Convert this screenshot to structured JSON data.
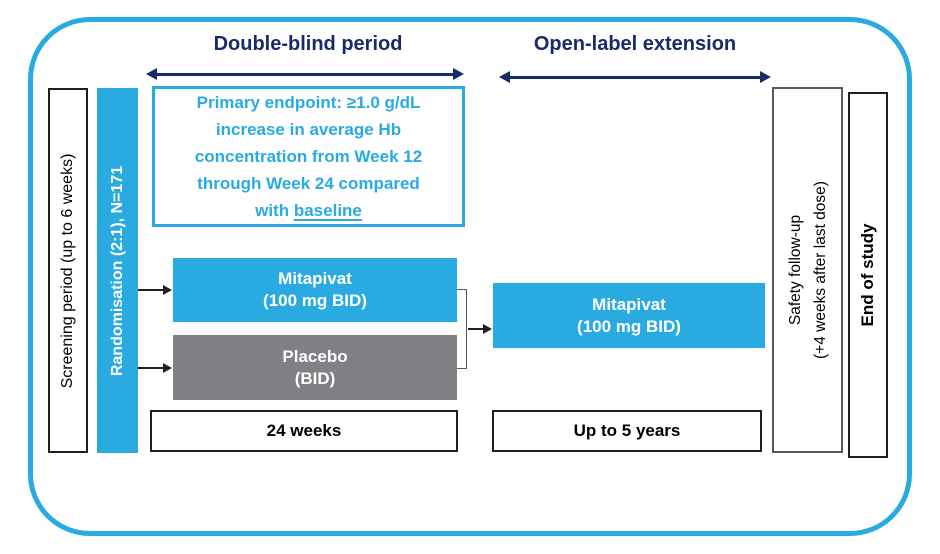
{
  "colors": {
    "cyan": "#29ABE2",
    "navy": "#172B68",
    "gray": "#808184",
    "ink": "#231F20",
    "bracket": "#58595B"
  },
  "headers": {
    "double_blind": "Double-blind period",
    "open_label": "Open-label extension"
  },
  "left_rail": {
    "screening": "Screening period (up to 6 weeks)",
    "randomisation": "Randomisation (2:1), N=171"
  },
  "endpoint": {
    "lines": [
      "Primary endpoint: ≥1.0 g/dL",
      "increase in average Hb",
      "concentration from Week 12",
      "through Week 24 compared"
    ],
    "last_line_prefix": "with",
    "last_line_underlined": "baseline"
  },
  "arms": {
    "mitapivat_db": {
      "name": "Mitapivat",
      "dose": "(100 mg BID)"
    },
    "placebo": {
      "name": "Placebo",
      "dose": "(BID)"
    },
    "mitapivat_ole": {
      "name": "Mitapivat",
      "dose": "(100 mg BID)"
    }
  },
  "durations": {
    "double_blind": "24 weeks",
    "open_label": "Up to 5 years"
  },
  "right_rail": {
    "safety_line1": "Safety follow-up",
    "safety_line2": "(+4 weeks after last dose)",
    "end_of_study": "End of study"
  }
}
